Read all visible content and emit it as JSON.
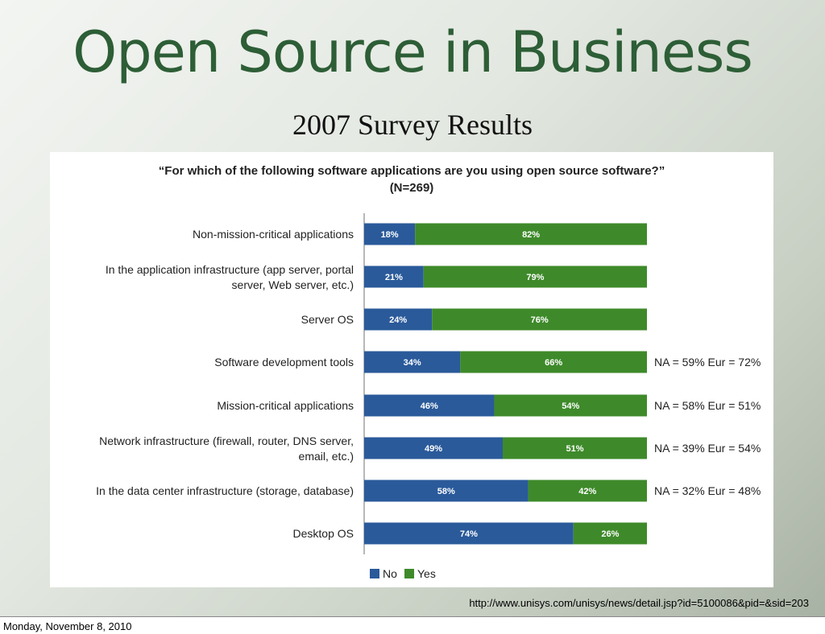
{
  "slide": {
    "title": "Open Source in Business",
    "subtitle": "2007 Survey Results",
    "source_url": "http://www.unisys.com/unisys/news/detail.jsp?id=5100086&pid=&sid=203",
    "footer_date": "Monday, November 8, 2010"
  },
  "colors": {
    "no": "#2a5a9a",
    "yes": "#3e8a2a",
    "title": "#2d5e36"
  },
  "chart_data": {
    "type": "bar",
    "orientation": "horizontal",
    "stacked": true,
    "percent_stacked": true,
    "title": "“For which of the following software applications are you using open source software?”",
    "subtitle": "(N=269)",
    "categories": [
      [
        "Non-mission-critical applications"
      ],
      [
        "In the application infrastructure (app server, portal",
        "server, Web server, etc.)"
      ],
      [
        "Server OS"
      ],
      [
        "Software development tools"
      ],
      [
        "Mission-critical applications"
      ],
      [
        "Network infrastructure (firewall, router, DNS server,",
        "email, etc.)"
      ],
      [
        "In the data center infrastructure (storage, database)"
      ],
      [
        "Desktop OS"
      ]
    ],
    "series": [
      {
        "name": "No",
        "values": [
          18,
          21,
          24,
          34,
          46,
          49,
          58,
          74
        ],
        "labels": [
          "18%",
          "21%",
          "24%",
          "34%",
          "46%",
          "49%",
          "58%",
          "74%"
        ]
      },
      {
        "name": "Yes",
        "values": [
          82,
          79,
          76,
          66,
          54,
          51,
          42,
          26
        ],
        "labels": [
          "82%",
          "79%",
          "76%",
          "66%",
          "54%",
          "51%",
          "42%",
          "26%"
        ]
      }
    ],
    "annotations": [
      "",
      "",
      "",
      "NA = 59% Eur = 72%",
      "NA = 58% Eur = 51%",
      "NA = 39% Eur = 54%",
      "NA = 32% Eur = 48%",
      ""
    ],
    "xlim": [
      0,
      100
    ],
    "grid": false,
    "legend": "bottom-center"
  }
}
